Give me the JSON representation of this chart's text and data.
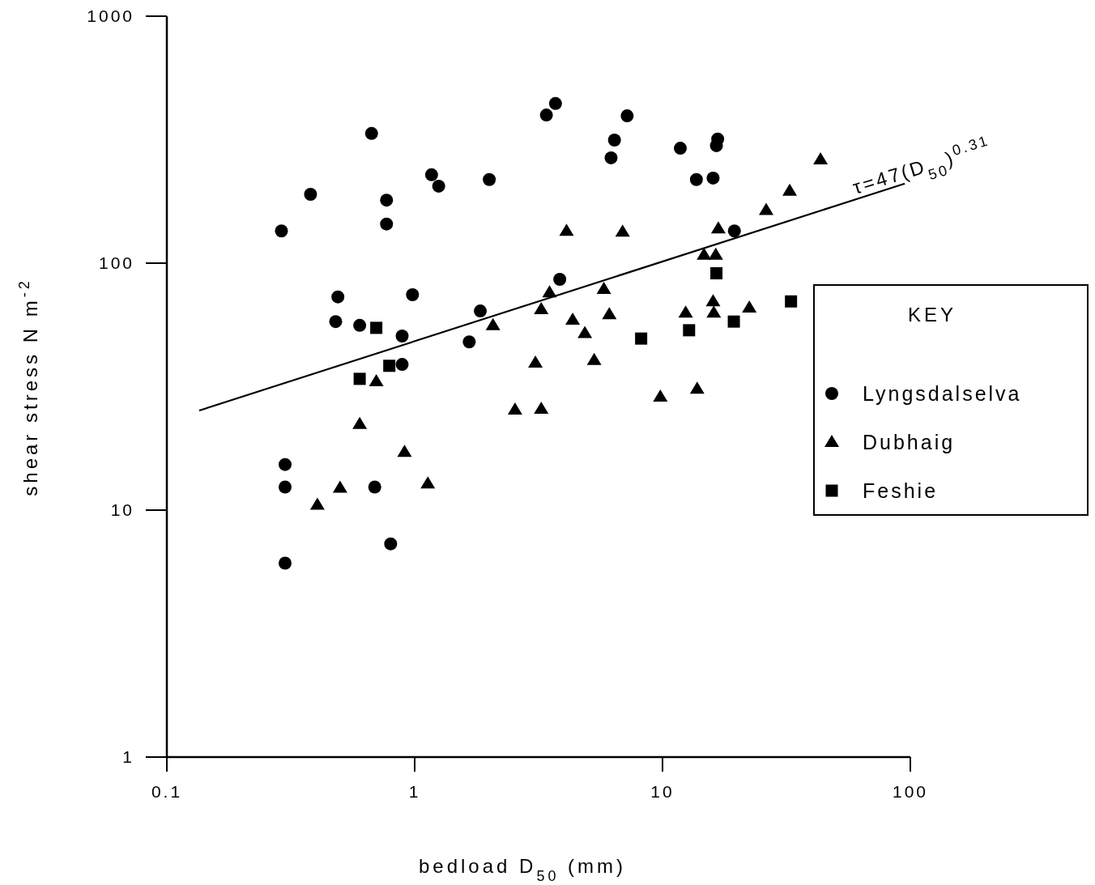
{
  "chart_data": {
    "type": "scatter",
    "xlabel": "bedload D$_{50}$ (mm)",
    "ylabel": "shear stress  N m$^{-2}$",
    "log": "xy",
    "xlim": [
      0.1,
      100
    ],
    "xticks": [
      0.1,
      1,
      10,
      100
    ],
    "ylim": [
      1,
      1000
    ],
    "yticks": [
      1,
      10,
      100,
      1000
    ],
    "grid": false,
    "legend": "right",
    "legend_title": "KEY",
    "series": [
      {
        "name": "Lyngsdalselva",
        "color": "#000000",
        "marker": "circle",
        "x": [
          0.29,
          0.38,
          0.67,
          0.77,
          0.77,
          1.17,
          1.25,
          2.0,
          3.4,
          3.7,
          6.4,
          6.2,
          7.2,
          11.8,
          16.7,
          16.5,
          13.7,
          16.0,
          19.5,
          0.49,
          0.48,
          0.6,
          0.98,
          0.89,
          0.89,
          3.85,
          1.84,
          1.66,
          0.3,
          0.3,
          0.69,
          0.8,
          0.3
        ],
        "values": [
          135,
          190,
          335,
          180,
          144,
          228,
          205,
          218,
          398,
          443,
          315,
          267,
          395,
          292,
          318,
          299,
          218,
          221,
          135,
          73,
          58,
          56,
          74.5,
          50.7,
          38.9,
          86,
          64,
          48,
          15.3,
          12.4,
          12.4,
          7.3,
          6.1
        ]
      },
      {
        "name": "Dubhaig",
        "color": "#000000",
        "marker": "triangle",
        "x": [
          0.405,
          0.5,
          0.6,
          0.7,
          0.91,
          1.13,
          2.07,
          2.54,
          3.07,
          3.24,
          3.24,
          3.5,
          4.1,
          4.34,
          4.86,
          5.3,
          5.8,
          6.1,
          6.9,
          9.8,
          12.4,
          13.8,
          14.7,
          16.4,
          16.0,
          16.1,
          16.8,
          22.4,
          26.2,
          32.6,
          43.4
        ],
        "values": [
          10.5,
          12.3,
          22.3,
          33.2,
          17.2,
          12.8,
          56,
          25.5,
          39.5,
          25.7,
          65,
          76,
          135,
          59,
          52,
          40.5,
          78.5,
          62,
          134,
          28.8,
          63,
          31,
          108,
          108,
          70,
          63,
          138,
          66,
          164,
          196,
          263
        ]
      },
      {
        "name": "Feshie",
        "color": "#000000",
        "marker": "square",
        "x": [
          0.6,
          0.7,
          0.79,
          8.2,
          12.8,
          16.5,
          19.4,
          33
        ],
        "values": [
          34,
          54.7,
          38.4,
          49.5,
          53.5,
          91,
          58,
          70
        ]
      },
      {
        "type": "line",
        "color": "#000000",
        "marker": "none",
        "x": [
          0.135,
          95
        ],
        "values": [
          25.3,
          210
        ]
      }
    ],
    "annotations": [
      {
        "text": "τ=47(D$_{50}$)$^{0.31}$",
        "x": 60,
        "y": 190
      }
    ]
  }
}
